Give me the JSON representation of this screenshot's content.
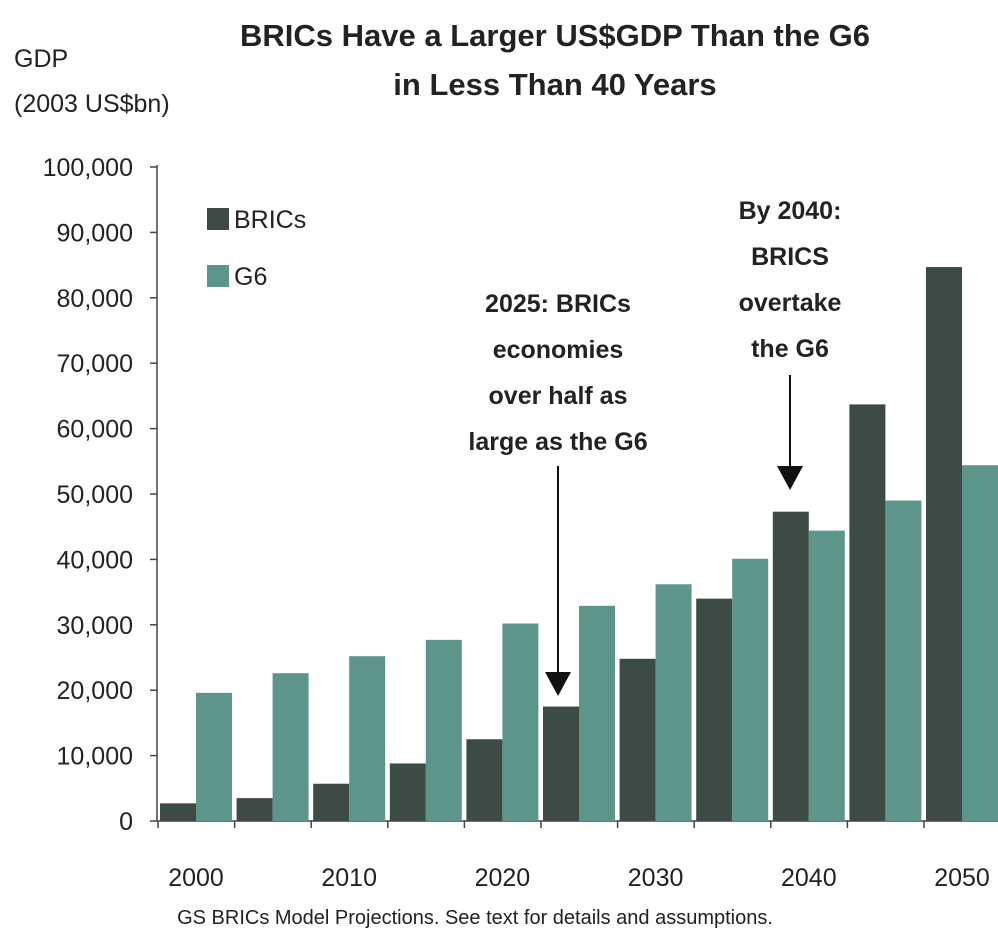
{
  "chart_data": {
    "type": "bar",
    "title": [
      "BRICs Have a Larger US$GDP Than the G6",
      "in Less Than 40 Years"
    ],
    "ylabel": [
      "GDP",
      "(2003 US$bn)"
    ],
    "ylim": [
      0,
      100000
    ],
    "yticks": [
      "0",
      "10,000",
      "20,000",
      "30,000",
      "40,000",
      "50,000",
      "60,000",
      "70,000",
      "80,000",
      "90,000",
      "100,000"
    ],
    "x": [
      2000,
      2005,
      2010,
      2015,
      2020,
      2025,
      2030,
      2035,
      2040,
      2045,
      2050
    ],
    "xticklabels": [
      "2000",
      "2010",
      "2020",
      "2030",
      "2040",
      "2050"
    ],
    "series": [
      {
        "name": "BRICs",
        "color": "#3d4b45",
        "values": [
          2700,
          3500,
          5700,
          8800,
          12500,
          17500,
          24800,
          34000,
          47300,
          63700,
          84700
        ]
      },
      {
        "name": "G6",
        "color": "#5d958b",
        "values": [
          19600,
          22600,
          25200,
          27700,
          30200,
          32900,
          36200,
          40100,
          44400,
          49000,
          54400
        ]
      }
    ],
    "legend": "top-left",
    "grid": false,
    "annotations": [
      {
        "lines": [
          "2025: BRICs",
          "economies",
          "over half as",
          "large as the G6"
        ],
        "x": 2025,
        "y": 20000
      },
      {
        "lines": [
          "By 2040:",
          "BRICS",
          "overtake",
          "the G6"
        ],
        "x": 2040,
        "y": 50000
      }
    ],
    "source_note": "GS BRICs Model Projections. See text for details and assumptions."
  }
}
